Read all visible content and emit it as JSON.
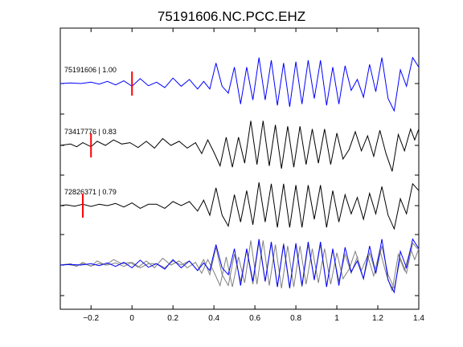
{
  "chart_data": {
    "type": "line",
    "title": "75191606.NC.PCC.EHZ",
    "xlabel": "",
    "ylabel": "",
    "xlim": [
      -0.35,
      1.4
    ],
    "xticks": [
      -0.2,
      0,
      0.2,
      0.4,
      0.6,
      0.8,
      1,
      1.2,
      1.4
    ],
    "xtick_labels": [
      "−0.2",
      "0",
      "0.2",
      "0.4",
      "0.6",
      "0.8",
      "1",
      "1.2",
      "1.4"
    ],
    "grid": false,
    "y_axis_labels": "none",
    "colors": {
      "reference": "#0000ff",
      "match": "#000000",
      "overlay_match": "#808080",
      "pick": "#ff0000"
    },
    "traces": [
      {
        "label": "75191606 | 1.00",
        "color": "#0000ff",
        "pick_time": 0.0,
        "points": [
          [
            -0.35,
            0.0
          ],
          [
            -0.3,
            0.02
          ],
          [
            -0.25,
            0.0
          ],
          [
            -0.2,
            0.05
          ],
          [
            -0.16,
            -0.02
          ],
          [
            -0.12,
            0.08
          ],
          [
            -0.08,
            -0.05
          ],
          [
            -0.04,
            0.1
          ],
          [
            0.0,
            -0.1
          ],
          [
            0.04,
            0.18
          ],
          [
            0.08,
            -0.08
          ],
          [
            0.12,
            0.05
          ],
          [
            0.16,
            -0.15
          ],
          [
            0.2,
            0.2
          ],
          [
            0.24,
            -0.1
          ],
          [
            0.28,
            0.15
          ],
          [
            0.32,
            -0.2
          ],
          [
            0.35,
            0.08
          ],
          [
            0.38,
            -0.2
          ],
          [
            0.41,
            0.75
          ],
          [
            0.44,
            -0.1
          ],
          [
            0.47,
            -0.35
          ],
          [
            0.5,
            0.6
          ],
          [
            0.53,
            -0.75
          ],
          [
            0.56,
            0.6
          ],
          [
            0.59,
            -0.6
          ],
          [
            0.62,
            0.95
          ],
          [
            0.65,
            -0.6
          ],
          [
            0.68,
            0.85
          ],
          [
            0.71,
            -0.8
          ],
          [
            0.74,
            0.75
          ],
          [
            0.77,
            -0.85
          ],
          [
            0.8,
            0.8
          ],
          [
            0.83,
            -0.75
          ],
          [
            0.86,
            0.85
          ],
          [
            0.89,
            -0.55
          ],
          [
            0.92,
            0.85
          ],
          [
            0.95,
            -0.8
          ],
          [
            0.98,
            0.6
          ],
          [
            1.01,
            -0.75
          ],
          [
            1.04,
            0.65
          ],
          [
            1.07,
            -0.25
          ],
          [
            1.1,
            0.15
          ],
          [
            1.13,
            -0.5
          ],
          [
            1.16,
            0.7
          ],
          [
            1.19,
            -0.3
          ],
          [
            1.22,
            0.95
          ],
          [
            1.25,
            -0.55
          ],
          [
            1.28,
            -1.0
          ],
          [
            1.31,
            0.5
          ],
          [
            1.34,
            -0.1
          ],
          [
            1.37,
            0.95
          ],
          [
            1.4,
            0.6
          ]
        ]
      },
      {
        "label": "73417776 | 0.83",
        "color": "#000000",
        "pick_time": -0.2,
        "points": [
          [
            -0.35,
            0.0
          ],
          [
            -0.3,
            0.05
          ],
          [
            -0.27,
            -0.05
          ],
          [
            -0.24,
            0.1
          ],
          [
            -0.2,
            -0.05
          ],
          [
            -0.17,
            0.15
          ],
          [
            -0.13,
            0.0
          ],
          [
            -0.09,
            0.2
          ],
          [
            -0.05,
            0.05
          ],
          [
            -0.01,
            0.1
          ],
          [
            0.03,
            -0.08
          ],
          [
            0.07,
            0.15
          ],
          [
            0.11,
            -0.1
          ],
          [
            0.15,
            0.25
          ],
          [
            0.19,
            0.0
          ],
          [
            0.23,
            0.15
          ],
          [
            0.27,
            -0.1
          ],
          [
            0.31,
            0.1
          ],
          [
            0.34,
            -0.3
          ],
          [
            0.37,
            0.2
          ],
          [
            0.4,
            -0.25
          ],
          [
            0.43,
            -0.75
          ],
          [
            0.46,
            0.3
          ],
          [
            0.49,
            -0.8
          ],
          [
            0.52,
            0.3
          ],
          [
            0.55,
            -0.65
          ],
          [
            0.58,
            0.9
          ],
          [
            0.61,
            -0.7
          ],
          [
            0.64,
            0.9
          ],
          [
            0.67,
            -0.75
          ],
          [
            0.7,
            0.75
          ],
          [
            0.73,
            -0.85
          ],
          [
            0.76,
            0.7
          ],
          [
            0.79,
            -0.8
          ],
          [
            0.82,
            0.7
          ],
          [
            0.85,
            -0.7
          ],
          [
            0.88,
            0.6
          ],
          [
            0.91,
            -0.65
          ],
          [
            0.94,
            0.6
          ],
          [
            0.97,
            -0.7
          ],
          [
            1.0,
            0.45
          ],
          [
            1.03,
            -0.5
          ],
          [
            1.06,
            -0.15
          ],
          [
            1.09,
            0.5
          ],
          [
            1.12,
            -0.2
          ],
          [
            1.15,
            0.35
          ],
          [
            1.18,
            -0.4
          ],
          [
            1.21,
            0.55
          ],
          [
            1.24,
            -0.3
          ],
          [
            1.27,
            -0.95
          ],
          [
            1.3,
            0.4
          ],
          [
            1.33,
            -0.2
          ],
          [
            1.36,
            0.6
          ],
          [
            1.38,
            0.2
          ],
          [
            1.4,
            0.6
          ]
        ]
      },
      {
        "label": "72826371 | 0.79",
        "color": "#000000",
        "pick_time": -0.24,
        "points": [
          [
            -0.35,
            0.0
          ],
          [
            -0.32,
            0.03
          ],
          [
            -0.28,
            -0.02
          ],
          [
            -0.24,
            0.05
          ],
          [
            -0.2,
            -0.03
          ],
          [
            -0.16,
            0.05
          ],
          [
            -0.12,
            0.0
          ],
          [
            -0.08,
            0.08
          ],
          [
            -0.04,
            -0.05
          ],
          [
            0.0,
            0.1
          ],
          [
            0.04,
            -0.1
          ],
          [
            0.08,
            0.05
          ],
          [
            0.12,
            0.05
          ],
          [
            0.16,
            -0.1
          ],
          [
            0.2,
            0.15
          ],
          [
            0.24,
            0.0
          ],
          [
            0.28,
            0.15
          ],
          [
            0.32,
            -0.2
          ],
          [
            0.35,
            0.2
          ],
          [
            0.38,
            -0.35
          ],
          [
            0.41,
            0.65
          ],
          [
            0.44,
            -0.35
          ],
          [
            0.47,
            -0.75
          ],
          [
            0.5,
            0.4
          ],
          [
            0.53,
            -0.6
          ],
          [
            0.56,
            0.55
          ],
          [
            0.59,
            -0.7
          ],
          [
            0.62,
            0.85
          ],
          [
            0.65,
            -0.6
          ],
          [
            0.68,
            0.8
          ],
          [
            0.71,
            -0.8
          ],
          [
            0.74,
            0.8
          ],
          [
            0.77,
            -0.8
          ],
          [
            0.8,
            0.75
          ],
          [
            0.83,
            -0.8
          ],
          [
            0.86,
            0.75
          ],
          [
            0.89,
            -0.5
          ],
          [
            0.92,
            0.75
          ],
          [
            0.95,
            -0.8
          ],
          [
            0.98,
            0.55
          ],
          [
            1.01,
            -0.6
          ],
          [
            1.04,
            0.4
          ],
          [
            1.07,
            -0.3
          ],
          [
            1.1,
            0.3
          ],
          [
            1.13,
            -0.5
          ],
          [
            1.16,
            0.45
          ],
          [
            1.19,
            -0.3
          ],
          [
            1.22,
            0.7
          ],
          [
            1.25,
            -0.35
          ],
          [
            1.28,
            -0.85
          ],
          [
            1.31,
            0.25
          ],
          [
            1.34,
            -0.3
          ],
          [
            1.37,
            0.8
          ],
          [
            1.4,
            0.55
          ]
        ]
      }
    ]
  }
}
